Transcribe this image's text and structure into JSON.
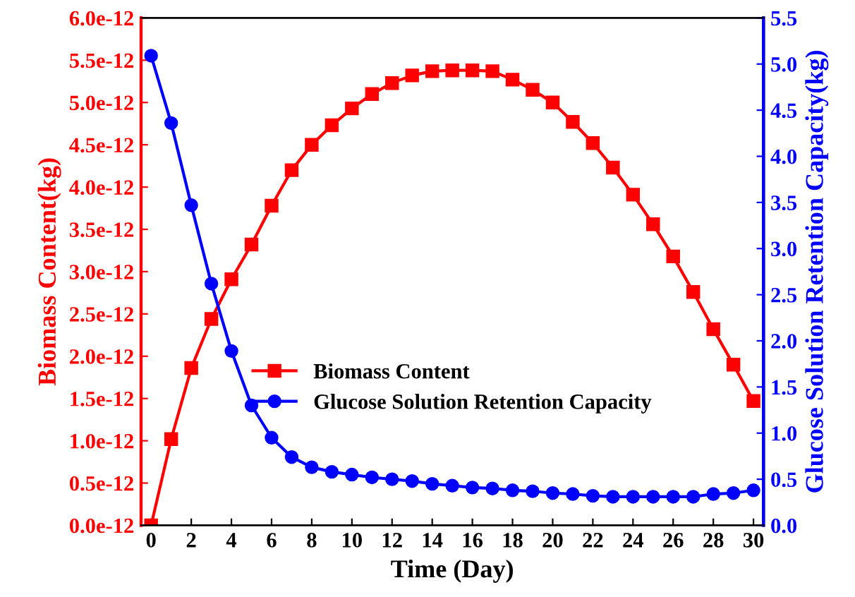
{
  "chart_data": {
    "type": "line",
    "xlabel": "Time (Day)",
    "ylabel": "Biomass Content(kg)",
    "y2label": "Glucose Solution Retention Capacity(kg)",
    "x": [
      0,
      1,
      2,
      3,
      4,
      5,
      6,
      7,
      8,
      9,
      10,
      11,
      12,
      13,
      14,
      15,
      16,
      17,
      18,
      19,
      20,
      21,
      22,
      23,
      24,
      25,
      26,
      27,
      28,
      29,
      30
    ],
    "xlim": [
      -0.5,
      30.5
    ],
    "xticks": [
      0,
      2,
      4,
      6,
      8,
      10,
      12,
      14,
      16,
      18,
      20,
      22,
      24,
      26,
      28,
      30
    ],
    "ylim": [
      0,
      6e-12
    ],
    "yticks": [
      {
        "value": 0,
        "label": "0.0e-12"
      },
      {
        "value": 5e-13,
        "label": "0.5e-12"
      },
      {
        "value": 1e-12,
        "label": "1.0e-12"
      },
      {
        "value": 1.5e-12,
        "label": "1.5e-12"
      },
      {
        "value": 2e-12,
        "label": "2.0e-12"
      },
      {
        "value": 2.5e-12,
        "label": "2.5e-12"
      },
      {
        "value": 3e-12,
        "label": "3.0e-12"
      },
      {
        "value": 3.5e-12,
        "label": "3.5e-12"
      },
      {
        "value": 4e-12,
        "label": "4.0e-12"
      },
      {
        "value": 4.5e-12,
        "label": "4.5e-12"
      },
      {
        "value": 5e-12,
        "label": "5.0e-12"
      },
      {
        "value": 5.5e-12,
        "label": "5.5e-12"
      },
      {
        "value": 6e-12,
        "label": "6.0e-12"
      }
    ],
    "y2lim": [
      0,
      5.5
    ],
    "y2ticks": [
      {
        "value": 0,
        "label": "0.0"
      },
      {
        "value": 0.5,
        "label": "0.5"
      },
      {
        "value": 1,
        "label": "1.0"
      },
      {
        "value": 1.5,
        "label": "1.5"
      },
      {
        "value": 2,
        "label": "2.0"
      },
      {
        "value": 2.5,
        "label": "2.5"
      },
      {
        "value": 3,
        "label": "3.0"
      },
      {
        "value": 3.5,
        "label": "3.5"
      },
      {
        "value": 4,
        "label": "4.0"
      },
      {
        "value": 4.5,
        "label": "4.5"
      },
      {
        "value": 5,
        "label": "5.0"
      },
      {
        "value": 5.5,
        "label": "5.5"
      }
    ],
    "legend": "center",
    "grid": false,
    "line_style": "solid",
    "series": [
      {
        "name": "Biomass Content",
        "color": "#ff0000",
        "marker": "square",
        "values": [
          0,
          1.02e-12,
          1.86e-12,
          2.44e-12,
          2.91e-12,
          3.32e-12,
          3.78e-12,
          4.2e-12,
          4.5e-12,
          4.73e-12,
          4.93e-12,
          5.1e-12,
          5.23e-12,
          5.32e-12,
          5.37e-12,
          5.38e-12,
          5.38e-12,
          5.37e-12,
          5.27e-12,
          5.15e-12,
          5e-12,
          4.77e-12,
          4.52e-12,
          4.23e-12,
          3.91e-12,
          3.56e-12,
          3.18e-12,
          2.76e-12,
          2.32e-12,
          1.9e-12,
          1.47e-12
        ]
      },
      {
        "name": "Glucose Solution Retention Capacity",
        "color": "#0000ff",
        "marker": "circle",
        "axis": "y2",
        "values": [
          5.09,
          4.36,
          3.47,
          2.62,
          1.89,
          1.3,
          0.95,
          0.74,
          0.63,
          0.58,
          0.55,
          0.52,
          0.5,
          0.48,
          0.45,
          0.43,
          0.41,
          0.4,
          0.38,
          0.37,
          0.35,
          0.34,
          0.32,
          0.31,
          0.31,
          0.31,
          0.31,
          0.31,
          0.34,
          0.35,
          0.38
        ]
      }
    ]
  }
}
